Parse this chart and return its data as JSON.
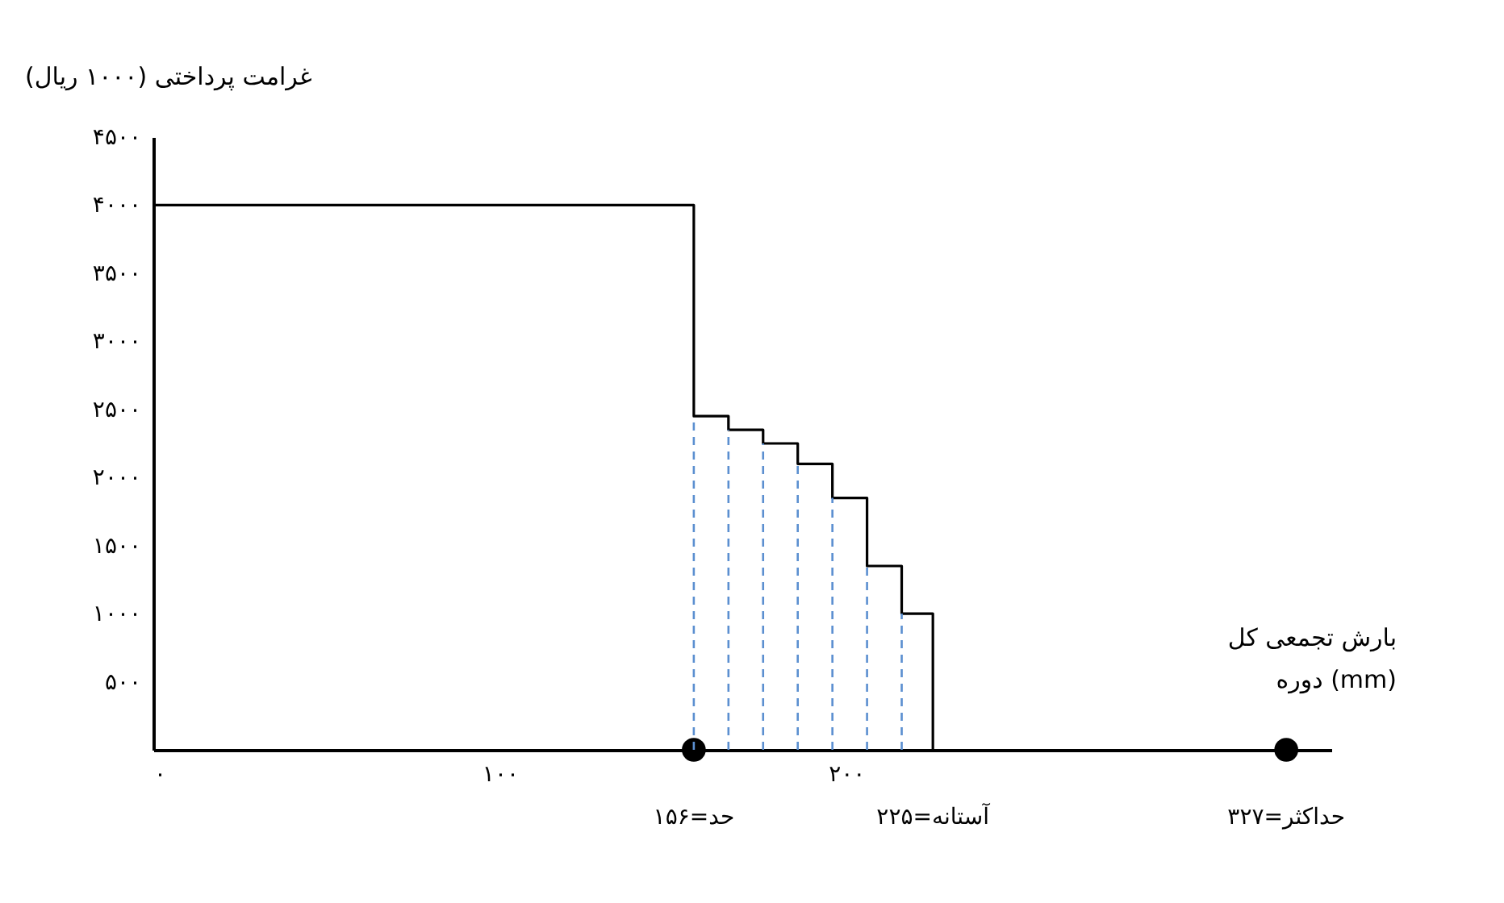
{
  "chart_data": {
    "type": "step",
    "ylabel": "غرامت پرداختی (۱۰۰۰ ریال)",
    "xlabel": "بارش تجمعی کل\nدوره (mm)",
    "xlim": [
      0,
      340
    ],
    "xticks": [
      {
        "value": 0,
        "label": "۰"
      },
      {
        "value": 100,
        "label": "۱۰۰"
      },
      {
        "value": 200,
        "label": "۲۰۰"
      }
    ],
    "ylim": [
      0,
      4500
    ],
    "yticks": [
      {
        "value": 500,
        "label": "۵۰۰"
      },
      {
        "value": 1000,
        "label": "۱۰۰۰"
      },
      {
        "value": 1500,
        "label": "۱۵۰۰"
      },
      {
        "value": 2000,
        "label": "۲۰۰۰"
      },
      {
        "value": 2500,
        "label": "۲۵۰۰"
      },
      {
        "value": 3000,
        "label": "۳۰۰۰"
      },
      {
        "value": 3500,
        "label": "۳۵۰۰"
      },
      {
        "value": 4000,
        "label": "۴۰۰۰"
      },
      {
        "value": 4500,
        "label": "۴۵۰۰"
      }
    ],
    "series": [
      {
        "color": "#000000",
        "x": [
          0,
          156,
          166,
          176,
          186,
          196,
          206,
          216,
          225
        ],
        "values": [
          4000,
          2450,
          2350,
          2250,
          2100,
          1850,
          1350,
          1000,
          0
        ]
      },
      {
        "type": "scatter",
        "marker": "circle",
        "color": "#000000",
        "x": [
          156,
          327
        ],
        "values": [
          0,
          0
        ]
      }
    ],
    "ref_lines": [
      {
        "axis": "x",
        "value": 156,
        "color": "#5b8fd0",
        "line_style": "dashed"
      },
      {
        "axis": "x",
        "value": 166,
        "color": "#5b8fd0",
        "line_style": "dashed"
      },
      {
        "axis": "x",
        "value": 176,
        "color": "#5b8fd0",
        "line_style": "dashed"
      },
      {
        "axis": "x",
        "value": 186,
        "color": "#5b8fd0",
        "line_style": "dashed"
      },
      {
        "axis": "x",
        "value": 196,
        "color": "#5b8fd0",
        "line_style": "dashed"
      },
      {
        "axis": "x",
        "value": 206,
        "color": "#5b8fd0",
        "line_style": "dashed"
      },
      {
        "axis": "x",
        "value": 216,
        "color": "#5b8fd0",
        "line_style": "dashed"
      }
    ],
    "annotations": [
      {
        "text": "حد=۱۵۶",
        "x": 156,
        "y": 0
      },
      {
        "text": "آستانه=۲۲۵",
        "x": 225,
        "y": 0
      },
      {
        "text": "حداکثر=۳۲۷",
        "x": 327,
        "y": 0
      }
    ],
    "grid": false
  }
}
